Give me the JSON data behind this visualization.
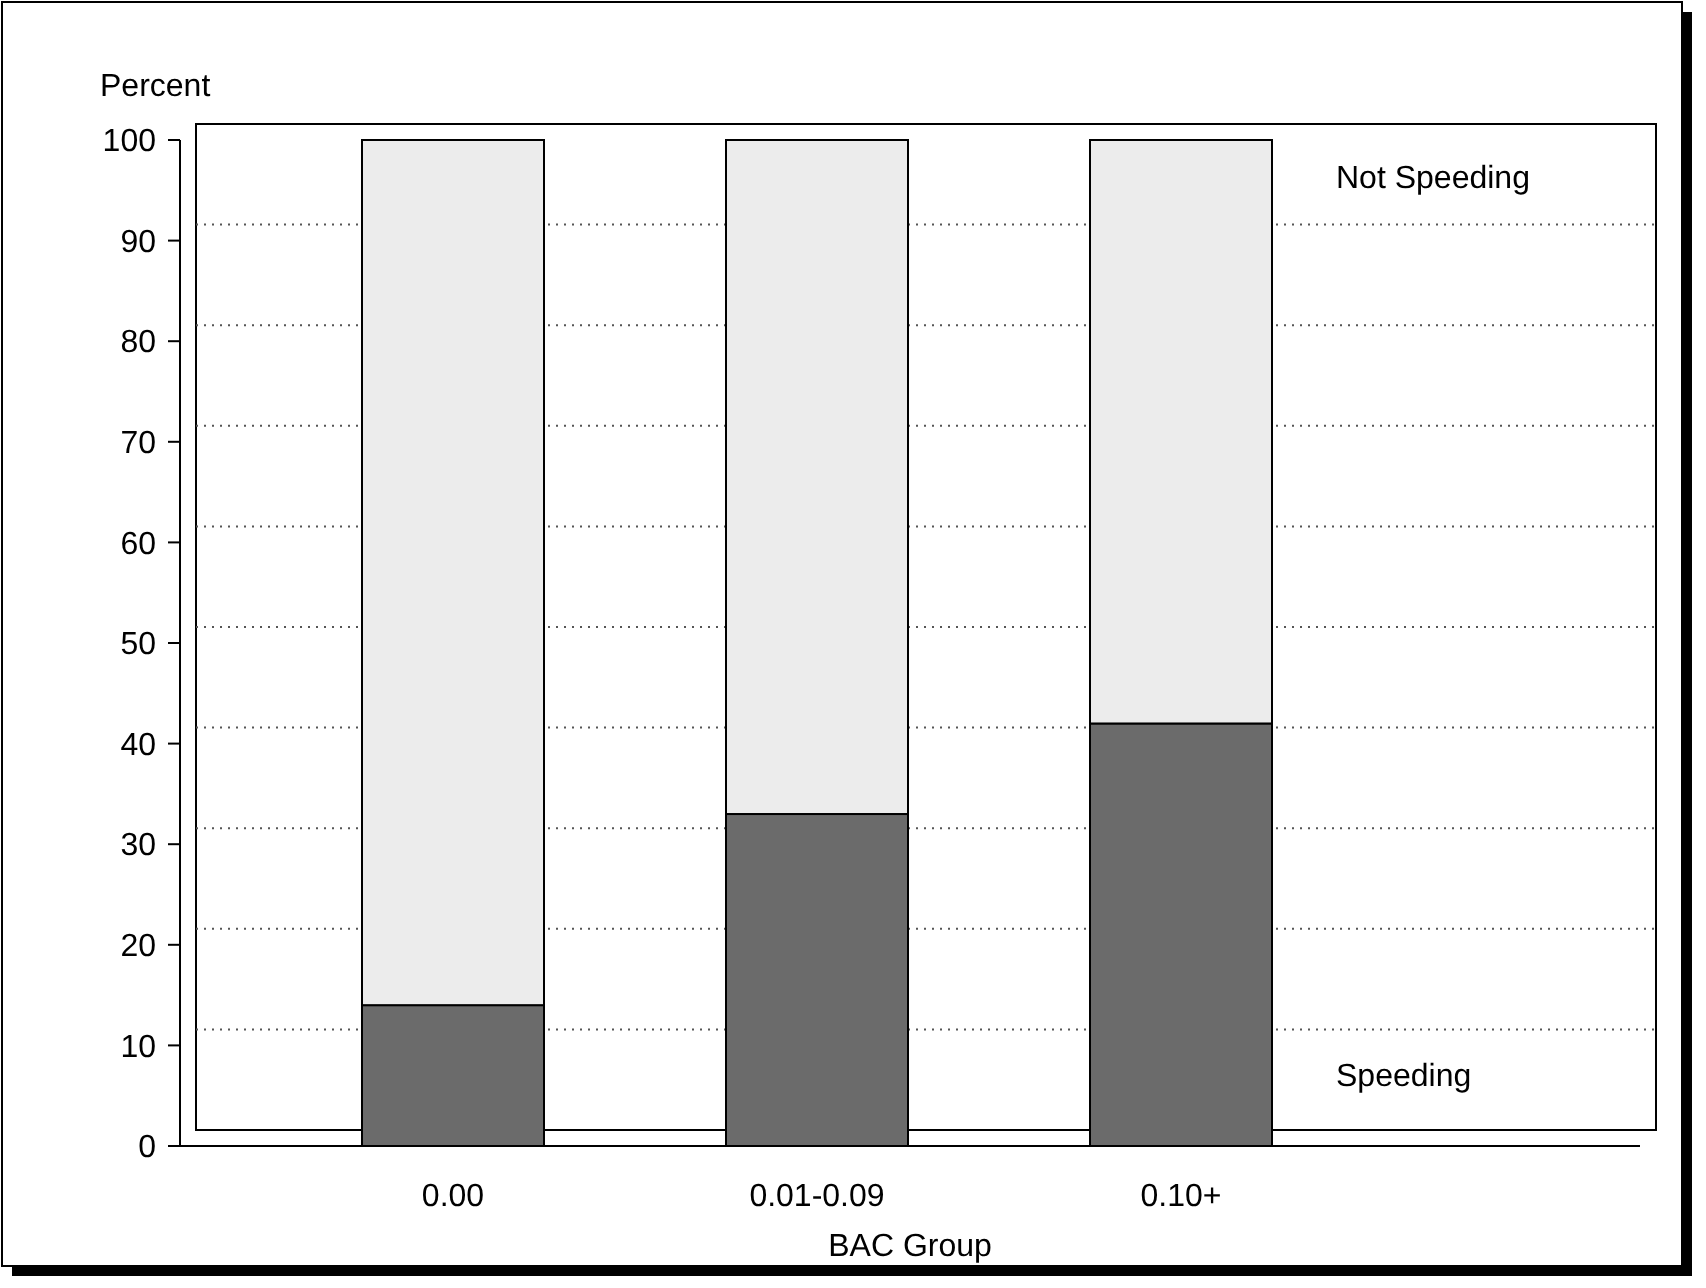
{
  "chart_data": {
    "type": "bar",
    "stacked": true,
    "xlabel": "BAC Group",
    "ylabel": "Percent",
    "categories": [
      "0.00",
      "0.01-0.09",
      "0.10+"
    ],
    "series": [
      {
        "name": "Speeding",
        "color": "#6b6b6b",
        "values": [
          14,
          33,
          42
        ]
      },
      {
        "name": "Not Speeding",
        "color": "#ececec",
        "values": [
          86,
          67,
          58
        ]
      }
    ],
    "ylim": [
      0,
      100
    ],
    "yticks": [
      0,
      10,
      20,
      30,
      40,
      50,
      60,
      70,
      80,
      90,
      100
    ],
    "grid": "y",
    "legend": false
  }
}
